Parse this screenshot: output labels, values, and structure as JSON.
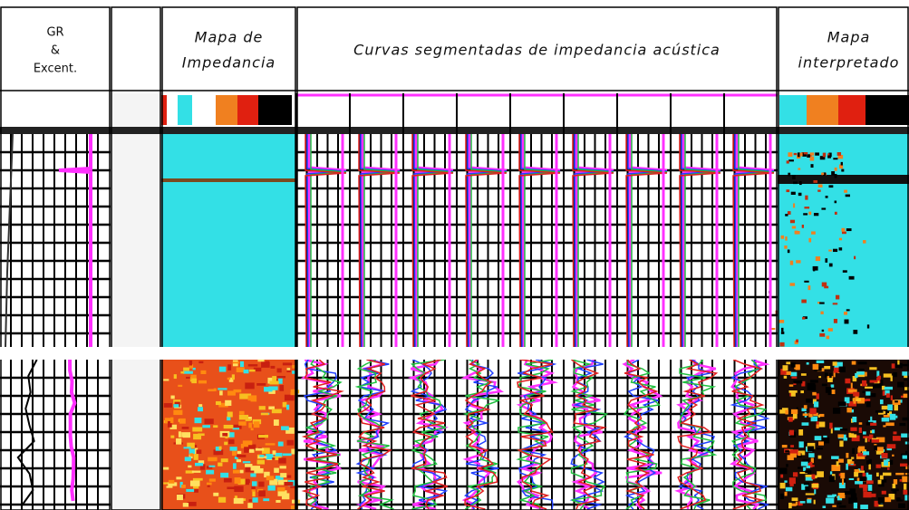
{
  "columns": [
    {
      "title_lines": [
        "GR",
        "&",
        "Excent."
      ]
    },
    {
      "title_lines": []
    },
    {
      "title_lines": [
        "Mapa de",
        "Impedancia"
      ]
    },
    {
      "title_lines": [
        "Curvas segmentadas de impedancia acústica"
      ]
    },
    {
      "title_lines": [
        "Mapa",
        "interpretado"
      ]
    }
  ]
}
